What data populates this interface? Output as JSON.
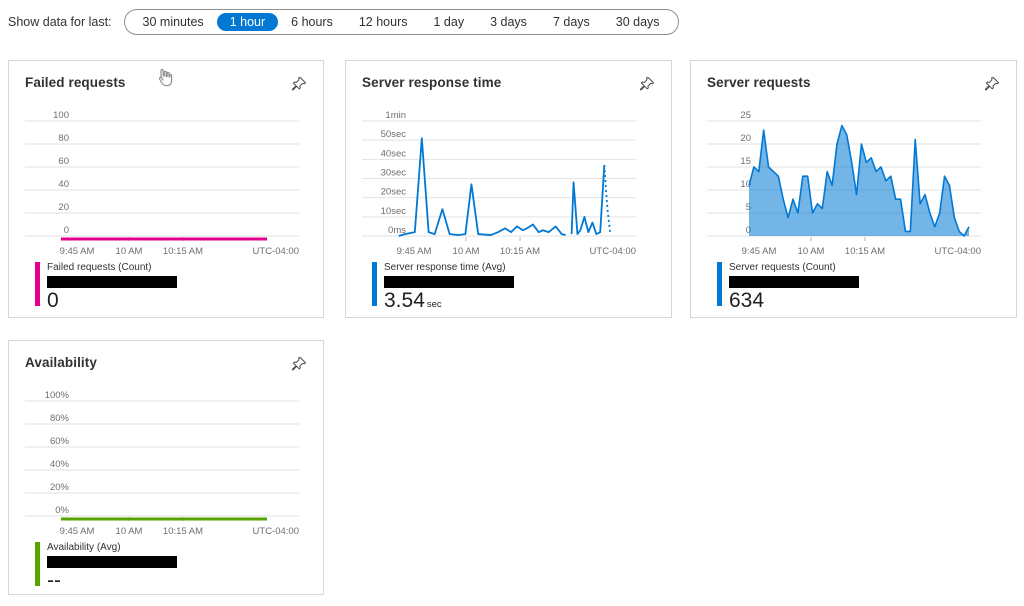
{
  "toolbar": {
    "label": "Show data for last:",
    "selected_color": "#0078d4",
    "options": [
      {
        "label": "30 minutes",
        "selected": false
      },
      {
        "label": "1 hour",
        "selected": true
      },
      {
        "label": "6 hours",
        "selected": false
      },
      {
        "label": "12 hours",
        "selected": false
      },
      {
        "label": "1 day",
        "selected": false
      },
      {
        "label": "3 days",
        "selected": false
      },
      {
        "label": "7 days",
        "selected": false
      },
      {
        "label": "30 days",
        "selected": false
      }
    ]
  },
  "icons": {
    "pin": "pushpin-outline",
    "cursor": "hand-pointer"
  },
  "cards": [
    {
      "id": "failed-requests",
      "title": "Failed requests",
      "legend": {
        "label": "Failed requests (Count)",
        "value": "0",
        "unit": "",
        "color": "#e3008c",
        "redacted": true
      },
      "chart_data": {
        "type": "flat-line",
        "title": "Failed requests",
        "color": "#e3008c",
        "ymax": 100,
        "y_ticks": [
          "100",
          "80",
          "60",
          "40",
          "20",
          "0"
        ],
        "x_ticks": [
          "9:45 AM",
          "10 AM",
          "10:15 AM"
        ],
        "x_right_label": "UTC-04:00",
        "values": [
          0,
          0
        ],
        "x_range": [
          46,
          252
        ]
      }
    },
    {
      "id": "server-response-time",
      "title": "Server response time",
      "legend": {
        "label": "Server response time (Avg)",
        "value": "3.54",
        "unit": "sec",
        "color": "#0078d4",
        "redacted": true
      },
      "chart_data": {
        "type": "line",
        "title": "Server response time",
        "color": "#0078d4",
        "ymax": 60,
        "y_ticks": [
          "1min",
          "50sec",
          "40sec",
          "30sec",
          "20sec",
          "10sec",
          "0ms"
        ],
        "x_ticks": [
          "9:45 AM",
          "10 AM",
          "10:15 AM"
        ],
        "x_right_label": "UTC-04:00",
        "unit_seconds": true,
        "segments": [
          {
            "style": "solid",
            "points": [
              [
                0.02,
                0
              ],
              [
                0.045,
                1
              ],
              [
                0.086,
                2
              ],
              [
                0.115,
                51
              ],
              [
                0.143,
                2
              ],
              [
                0.168,
                1
              ],
              [
                0.2,
                14
              ],
              [
                0.23,
                1
              ],
              [
                0.266,
                0.5
              ],
              [
                0.295,
                1
              ],
              [
                0.32,
                27
              ],
              [
                0.348,
                1
              ],
              [
                0.4,
                0.5
              ],
              [
                0.43,
                2
              ],
              [
                0.459,
                4
              ],
              [
                0.484,
                2
              ],
              [
                0.508,
                5
              ],
              [
                0.533,
                3
              ],
              [
                0.549,
                4
              ],
              [
                0.574,
                6
              ],
              [
                0.598,
                2
              ],
              [
                0.615,
                3
              ],
              [
                0.639,
                2
              ],
              [
                0.668,
                5
              ],
              [
                0.693,
                1
              ],
              [
                0.709,
                0.5
              ]
            ]
          },
          {
            "style": "solid",
            "points": [
              [
                0.734,
                1
              ],
              [
                0.742,
                28
              ],
              [
                0.758,
                1
              ],
              [
                0.77,
                3
              ],
              [
                0.787,
                10
              ],
              [
                0.803,
                2
              ],
              [
                0.82,
                7
              ],
              [
                0.836,
                1
              ],
              [
                0.852,
                2
              ],
              [
                0.869,
                37
              ]
            ]
          },
          {
            "style": "dotted",
            "points": [
              [
                0.869,
                37
              ],
              [
                0.876,
                24
              ],
              [
                0.883,
                13
              ],
              [
                0.893,
                2
              ]
            ]
          }
        ],
        "x_range": [
          42,
          284
        ]
      }
    },
    {
      "id": "server-requests",
      "title": "Server requests",
      "legend": {
        "label": "Server requests (Count)",
        "value": "634",
        "unit": "",
        "color": "#0078d4",
        "redacted": true
      },
      "chart_data": {
        "type": "area",
        "title": "Server requests",
        "color": "#0078d4",
        "fill": "rgba(0,120,212,0.55)",
        "ymax": 25,
        "y_ticks": [
          "25",
          "20",
          "15",
          "10",
          "5",
          "0"
        ],
        "x_ticks": [
          "9:45 AM",
          "10 AM",
          "10:15 AM"
        ],
        "x_right_label": "UTC-04:00",
        "values": [
          11,
          15,
          14,
          23,
          15,
          14,
          13,
          8,
          4,
          8,
          5,
          13,
          13,
          5,
          7,
          6,
          14,
          11,
          20,
          24,
          22,
          16,
          9,
          20,
          16,
          17,
          14,
          15,
          12,
          13,
          8,
          8,
          1,
          1,
          21,
          7,
          9,
          5,
          2,
          5,
          13,
          11,
          4,
          1,
          0,
          2
        ],
        "x_range": [
          52,
          272
        ]
      }
    },
    {
      "id": "availability",
      "title": "Availability",
      "legend": {
        "label": "Availability (Avg)",
        "value": "--",
        "unit": "",
        "color": "#57a300",
        "redacted": true
      },
      "chart_data": {
        "type": "flat-line",
        "title": "Availability",
        "color": "#57a300",
        "ymax": 100,
        "y_ticks": [
          "100%",
          "80%",
          "60%",
          "40%",
          "20%",
          "0%"
        ],
        "x_ticks": [
          "9:45 AM",
          "10 AM",
          "10:15 AM"
        ],
        "x_right_label": "UTC-04:00",
        "values": [
          0,
          0
        ],
        "x_range": [
          46,
          252
        ]
      }
    }
  ]
}
